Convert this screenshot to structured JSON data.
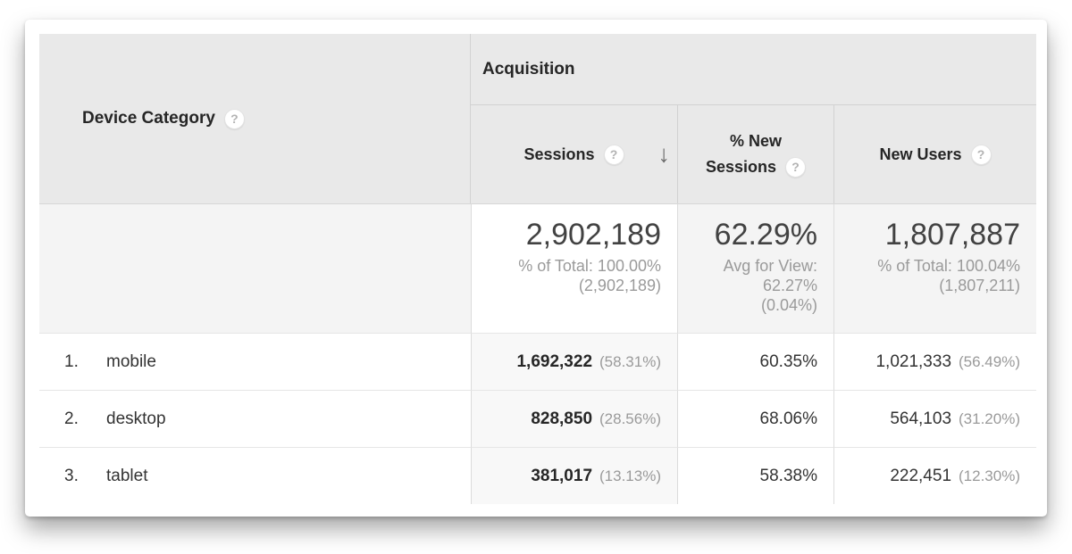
{
  "icons": {
    "help": "?",
    "sort_desc": "↓"
  },
  "colors": {
    "header_bg": "#e9e9e9",
    "header_border": "#d2d2d2",
    "summary_bg": "#f4f4f4",
    "sorted_column_bg": "#f8f8f8",
    "text_dark": "#262626",
    "text_gray": "#9a9a9a"
  },
  "table": {
    "dimension_header": {
      "label": "Device Category"
    },
    "group_header": {
      "label": "Acquisition"
    },
    "columns": {
      "sessions": {
        "label": "Sessions",
        "sorted": "descending"
      },
      "new_sessions": {
        "label": "% New Sessions",
        "line1": "% New",
        "line2": "Sessions"
      },
      "new_users": {
        "label": "New Users"
      }
    },
    "summary": {
      "sessions": {
        "value": "2,902,189",
        "line1": "% of Total: 100.00%",
        "line2": "(2,902,189)"
      },
      "new_sessions": {
        "value": "62.29%",
        "line1": "Avg for View:",
        "line2": "62.27%",
        "line3": "(0.04%)"
      },
      "new_users": {
        "value": "1,807,887",
        "line1": "% of Total: 100.04%",
        "line2": "(1,807,211)"
      }
    },
    "rows": [
      {
        "rank": "1.",
        "category": "mobile",
        "sessions": "1,692,322",
        "sessions_pct": "(58.31%)",
        "new_sessions": "60.35%",
        "new_users": "1,021,333",
        "new_users_pct": "(56.49%)"
      },
      {
        "rank": "2.",
        "category": "desktop",
        "sessions": "828,850",
        "sessions_pct": "(28.56%)",
        "new_sessions": "68.06%",
        "new_users": "564,103",
        "new_users_pct": "(31.20%)"
      },
      {
        "rank": "3.",
        "category": "tablet",
        "sessions": "381,017",
        "sessions_pct": "(13.13%)",
        "new_sessions": "58.38%",
        "new_users": "222,451",
        "new_users_pct": "(12.30%)"
      }
    ]
  }
}
